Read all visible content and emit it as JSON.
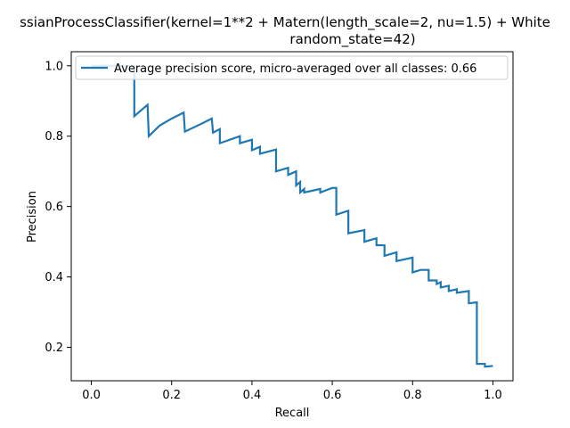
{
  "chart_data": {
    "type": "line",
    "title_line1": "ssianProcessClassifier(kernel=1**2 + Matern(length_scale=2, nu=1.5) + White",
    "title_line2": "random_state=42)",
    "xlabel": "Recall",
    "ylabel": "Precision",
    "xlim": [
      -0.05,
      1.05
    ],
    "ylim": [
      0.105,
      1.04
    ],
    "xticks": [
      0.0,
      0.2,
      0.4,
      0.6,
      0.8,
      1.0
    ],
    "xtick_labels": [
      "0.0",
      "0.2",
      "0.4",
      "0.6",
      "0.8",
      "1.0"
    ],
    "yticks": [
      0.2,
      0.4,
      0.6,
      0.8,
      1.0
    ],
    "ytick_labels": [
      "0.2",
      "0.4",
      "0.6",
      "0.8",
      "1.0"
    ],
    "grid": false,
    "legend_position": "top-left",
    "color": "#1f77b4",
    "series": [
      {
        "name": "Average precision score, micro-averaged over all classes: 0.66",
        "x": [
          0.0,
          0.107,
          0.107,
          0.107,
          0.14,
          0.143,
          0.17,
          0.2,
          0.23,
          0.233,
          0.27,
          0.3,
          0.303,
          0.32,
          0.32,
          0.37,
          0.37,
          0.4,
          0.4,
          0.42,
          0.42,
          0.46,
          0.46,
          0.49,
          0.49,
          0.51,
          0.51,
          0.52,
          0.52,
          0.53,
          0.53,
          0.57,
          0.57,
          0.6,
          0.61,
          0.61,
          0.64,
          0.64,
          0.68,
          0.68,
          0.71,
          0.71,
          0.73,
          0.73,
          0.76,
          0.76,
          0.8,
          0.8,
          0.82,
          0.84,
          0.84,
          0.86,
          0.86,
          0.87,
          0.87,
          0.89,
          0.89,
          0.91,
          0.91,
          0.94,
          0.94,
          0.96,
          0.96,
          0.98,
          0.98,
          1.0
        ],
        "y": [
          1.0,
          1.0,
          0.97,
          0.857,
          0.889,
          0.8,
          0.83,
          0.85,
          0.867,
          0.813,
          0.833,
          0.85,
          0.81,
          0.82,
          0.78,
          0.8,
          0.78,
          0.79,
          0.76,
          0.77,
          0.75,
          0.762,
          0.7,
          0.71,
          0.69,
          0.7,
          0.66,
          0.67,
          0.64,
          0.65,
          0.64,
          0.65,
          0.64,
          0.653,
          0.653,
          0.577,
          0.588,
          0.524,
          0.533,
          0.5,
          0.51,
          0.49,
          0.49,
          0.46,
          0.47,
          0.445,
          0.455,
          0.413,
          0.42,
          0.42,
          0.39,
          0.39,
          0.38,
          0.385,
          0.37,
          0.375,
          0.36,
          0.365,
          0.355,
          0.36,
          0.325,
          0.328,
          0.153,
          0.153,
          0.145,
          0.147
        ]
      }
    ]
  }
}
